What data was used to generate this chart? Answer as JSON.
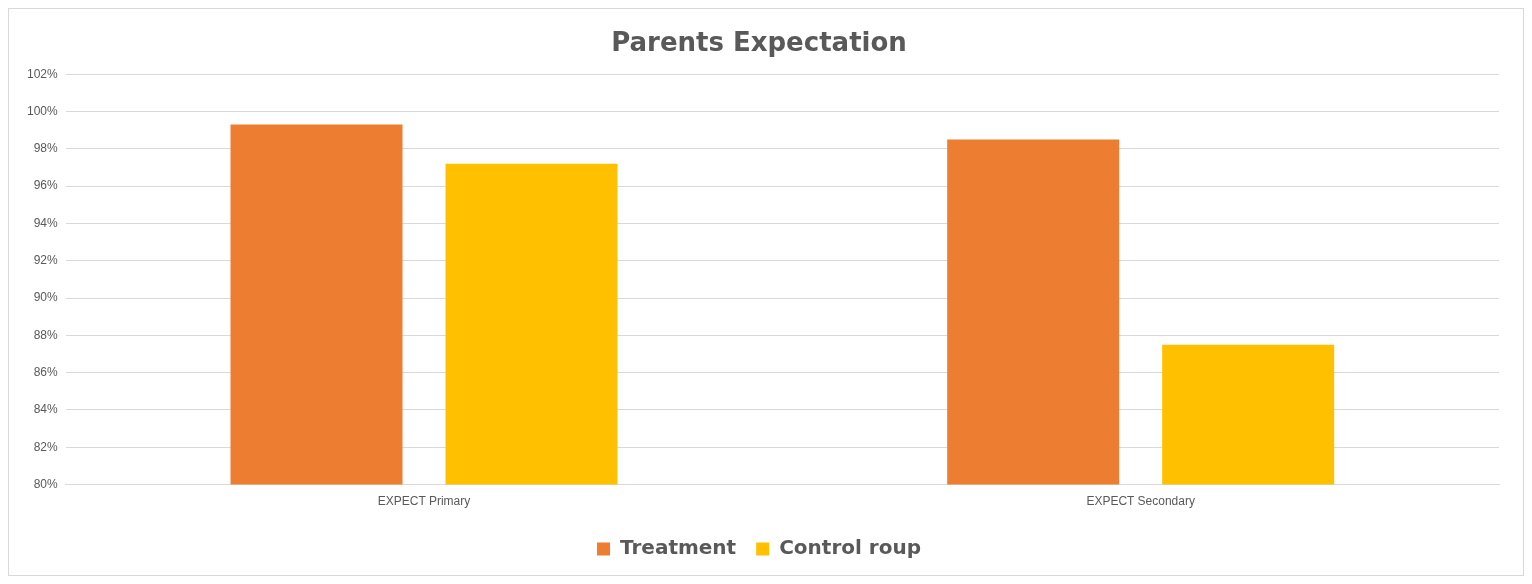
{
  "chart_data": {
    "type": "bar",
    "title": "Parents Expectation",
    "categories": [
      "EXPECT Primary",
      "EXPECT Secondary"
    ],
    "series": [
      {
        "name": "Treatment",
        "color": "#ed7d31",
        "values": [
          99.3,
          98.5
        ]
      },
      {
        "name": "Control roup",
        "color": "#ffc000",
        "values": [
          97.2,
          87.5
        ]
      }
    ],
    "ylim": [
      80,
      102
    ],
    "yticks": [
      {
        "value": 80,
        "label": "80%"
      },
      {
        "value": 82,
        "label": "82%"
      },
      {
        "value": 84,
        "label": "84%"
      },
      {
        "value": 86,
        "label": "86%"
      },
      {
        "value": 88,
        "label": "88%"
      },
      {
        "value": 90,
        "label": "90%"
      },
      {
        "value": 92,
        "label": "92%"
      },
      {
        "value": 94,
        "label": "94%"
      },
      {
        "value": 96,
        "label": "96%"
      },
      {
        "value": 98,
        "label": "98%"
      },
      {
        "value": 100,
        "label": "100%"
      },
      {
        "value": 102,
        "label": "102%"
      }
    ],
    "grid": "y",
    "legend": "bottom"
  }
}
